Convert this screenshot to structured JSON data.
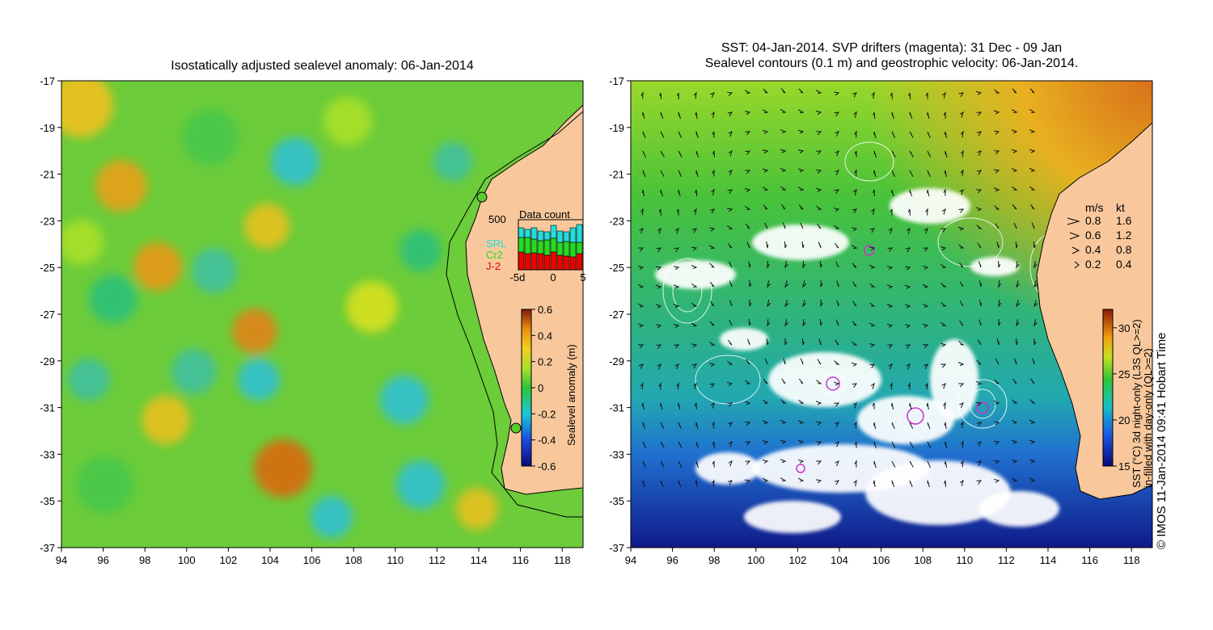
{
  "left_panel": {
    "title": "Isostatically adjusted sealevel anomaly: 06-Jan-2014",
    "colorbar": {
      "label": "Sealevel anomaly (m)",
      "ticks": [
        "0.6",
        "0.4",
        "0.2",
        "0",
        "-0.2",
        "-0.4",
        "-0.6"
      ],
      "range": [
        -0.6,
        0.6
      ]
    },
    "inset": {
      "title": "Data count",
      "ymax_label": "500",
      "x_ticks": [
        "-5d",
        "0",
        "5"
      ],
      "legend": [
        {
          "name": "SRL",
          "color": "#22dddd"
        },
        {
          "name": "Cr2",
          "color": "#22dd22"
        },
        {
          "name": "J-2",
          "color": "#ee0000"
        }
      ]
    }
  },
  "right_panel": {
    "title_line1": "SST: 04-Jan-2014. SVP drifters (magenta): 31 Dec - 09 Jan",
    "title_line2": "Sealevel contours (0.1 m) and geostrophic velocity: 06-Jan-2014.",
    "colorbar": {
      "label_line1": "SST (°C) 3d night-only (L3S QL>=2)",
      "label_line2": "in-filled with day-only (QL>=2)",
      "ticks": [
        "30",
        "25",
        "20",
        "15"
      ],
      "range": [
        15,
        32
      ]
    },
    "velocity_key": {
      "header_ms": "m/s",
      "header_kt": "kt",
      "rows": [
        {
          "ms": "0.8",
          "kt": "1.6"
        },
        {
          "ms": "0.6",
          "kt": "1.2"
        },
        {
          "ms": "0.4",
          "kt": "0.8"
        },
        {
          "ms": "0.2",
          "kt": "0.4"
        }
      ]
    }
  },
  "axes": {
    "x_ticks": [
      "94",
      "96",
      "98",
      "100",
      "102",
      "104",
      "106",
      "108",
      "110",
      "112",
      "114",
      "116",
      "118"
    ],
    "y_ticks": [
      "-17",
      "-19",
      "-21",
      "-23",
      "-25",
      "-27",
      "-29",
      "-31",
      "-33",
      "-35",
      "-37"
    ]
  },
  "footer": "© IMOS 11-Jan-2014 09:41 Hobart Time",
  "colors": {
    "land": "#f8c89c",
    "ssh_background": "#6ccc3a",
    "sst_background": "#3aa860"
  }
}
